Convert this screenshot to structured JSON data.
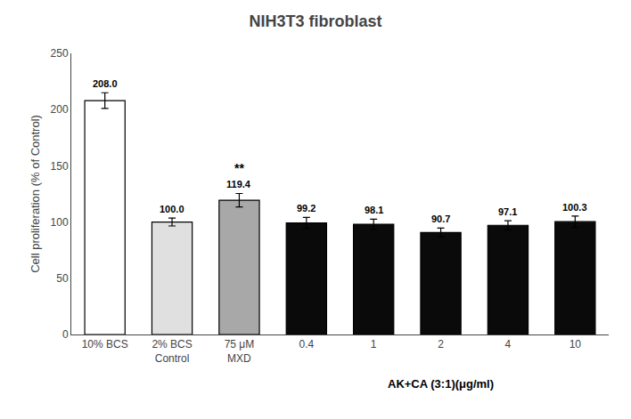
{
  "chart_data": {
    "type": "bar",
    "title": "NIH3T3 fibroblast",
    "ylabel": "Cell proliferation (% of Control)",
    "xlabel": "AK+CA (3:1)(μg/ml)",
    "categories": [
      "10% BCS",
      "2% BCS\nControl",
      "75 μM\nMXD",
      "0.4",
      "1",
      "2",
      "4",
      "10"
    ],
    "values": [
      208.0,
      100.0,
      119.4,
      99.2,
      98.1,
      90.7,
      97.1,
      100.3
    ],
    "value_labels": [
      "208.0",
      "100.0",
      "119.4",
      "99.2",
      "98.1",
      "90.7",
      "97.1",
      "100.3"
    ],
    "errors": [
      7.0,
      3.5,
      6.0,
      5.0,
      4.5,
      4.0,
      4.0,
      5.0
    ],
    "significance": [
      null,
      null,
      "**",
      null,
      null,
      null,
      null,
      null
    ],
    "colors": [
      "#ffffff",
      "#e0e0e0",
      "#a8a8a8",
      "#0a0a0a",
      "#0a0a0a",
      "#0a0a0a",
      "#0a0a0a",
      "#0a0a0a"
    ],
    "ylim": [
      0,
      250
    ],
    "yticks": [
      0,
      50,
      100,
      150,
      200,
      250
    ],
    "data_labels": true,
    "grid": false
  }
}
